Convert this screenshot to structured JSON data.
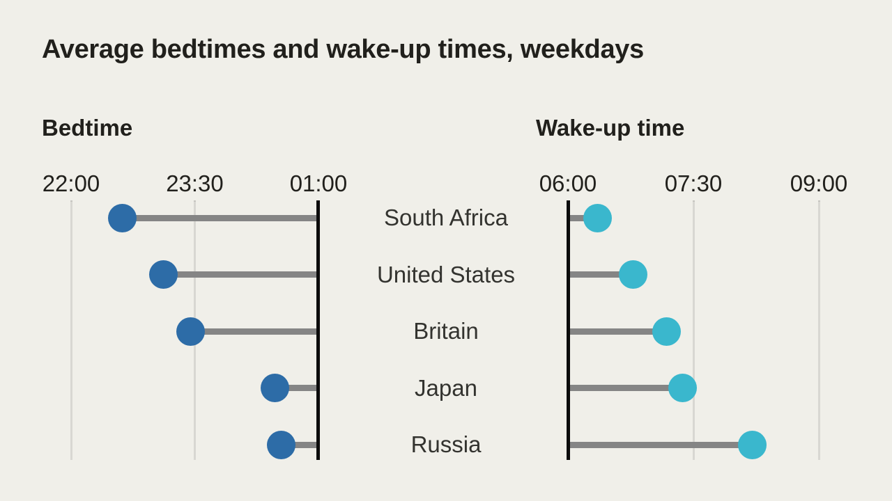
{
  "title": "Average bedtimes and wake-up times, weekdays",
  "colors": {
    "background": "#f0efe9",
    "ink": "#21201c",
    "country_label": "#33332f",
    "gridline": "#d8d7d2",
    "gridline_tick": "#c6c5c0",
    "baseline": "#0c0c0c",
    "stem": "#858585",
    "bedtime_dot": "#2d6ca7",
    "wakeup_dot": "#3ab7cd"
  },
  "chart_data": {
    "type": "scatter",
    "subtype": "paired-lollipop-dot-plot",
    "title": "Average bedtimes and wake-up times, weekdays",
    "grid": "vertical-only",
    "legend": "none",
    "panels": [
      {
        "id": "bedtime",
        "header": "Bedtime",
        "x_range_hours": [
          22.0,
          25.0
        ],
        "baseline_hours": 25.0,
        "baseline_side": "right",
        "axis_ticks": [
          {
            "label": "22:00",
            "hours": 22.0,
            "line": "grid"
          },
          {
            "label": "23:30",
            "hours": 23.5,
            "line": "grid"
          },
          {
            "label": "01:00",
            "hours": 25.0,
            "line": "baseline"
          }
        ]
      },
      {
        "id": "wake",
        "header": "Wake-up time",
        "x_range_hours": [
          6.0,
          9.0
        ],
        "baseline_hours": 6.0,
        "baseline_side": "left",
        "axis_ticks": [
          {
            "label": "06:00",
            "hours": 6.0,
            "line": "baseline"
          },
          {
            "label": "07:30",
            "hours": 7.5,
            "line": "grid"
          },
          {
            "label": "09:00",
            "hours": 9.0,
            "line": "grid"
          }
        ]
      }
    ],
    "countries": [
      {
        "name": "South Africa",
        "bedtime": "22:37",
        "bedtime_hours": 22.62,
        "wakeup": "06:21",
        "wakeup_hours": 6.35
      },
      {
        "name": "United States",
        "bedtime": "23:07",
        "bedtime_hours": 23.12,
        "wakeup": "06:47",
        "wakeup_hours": 6.78
      },
      {
        "name": "Britain",
        "bedtime": "23:27",
        "bedtime_hours": 23.45,
        "wakeup": "07:11",
        "wakeup_hours": 7.18
      },
      {
        "name": "Japan",
        "bedtime": "00:28",
        "bedtime_hours": 24.47,
        "wakeup": "07:22",
        "wakeup_hours": 7.37
      },
      {
        "name": "Russia",
        "bedtime": "00:33",
        "bedtime_hours": 24.55,
        "wakeup": "08:12",
        "wakeup_hours": 8.2
      }
    ]
  }
}
